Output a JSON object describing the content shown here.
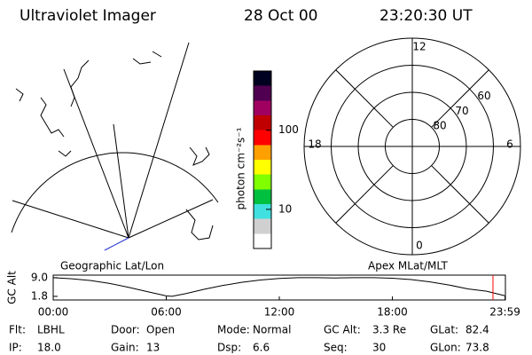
{
  "header": {
    "instrument": "Ultraviolet Imager",
    "date": "28 Oct 00",
    "time": "23:20:30 UT"
  },
  "colorbar": {
    "label": "photon cm⁻²s⁻¹",
    "log": true,
    "lim": [
      3.2,
      560
    ],
    "ticks": [
      10,
      100
    ],
    "colors": [
      "#ffffff",
      "#d0d0d0",
      "#40e0e0",
      "#00c040",
      "#80ff00",
      "#ffff00",
      "#ffa000",
      "#ff0000",
      "#c00000",
      "#a00060",
      "#500050",
      "#000020"
    ]
  },
  "polar": {
    "lat_lim": [
      50,
      90
    ],
    "lat_rings": [
      80,
      70,
      60
    ],
    "hours": [
      12,
      6,
      0,
      18
    ]
  },
  "altitude": {
    "left_label": "Geographic Lat/Lon",
    "right_label": "Apex MLat/MLT",
    "ylabel": "GC Alt",
    "xlim": [
      0,
      24
    ],
    "ylim": [
      0.4,
      10.0
    ],
    "yticks": [
      {
        "value": 9.0,
        "label": "9.0"
      },
      {
        "value": 1.8,
        "label": "1.8"
      }
    ],
    "xticks": [
      {
        "value": 0,
        "label": "00:00"
      },
      {
        "value": 6,
        "label": "06:00"
      },
      {
        "value": 12,
        "label": "12:00"
      },
      {
        "value": 18,
        "label": "18:00"
      },
      {
        "value": 23.98,
        "label": "23:59"
      }
    ],
    "x": [
      0,
      1,
      2,
      3,
      4,
      5,
      6,
      6.3,
      7,
      8,
      9,
      10,
      11,
      12,
      13,
      14,
      15,
      16,
      17,
      18,
      19,
      20,
      21,
      22,
      23,
      24
    ],
    "values": [
      9.0,
      8.6,
      7.9,
      6.8,
      5.3,
      3.6,
      2.0,
      1.8,
      2.8,
      4.5,
      6.0,
      7.2,
      8.1,
      8.7,
      9.0,
      9.0,
      8.9,
      9.0,
      9.0,
      8.8,
      8.3,
      7.4,
      6.2,
      4.7,
      3.8,
      2.0
    ],
    "line_color": "#000000",
    "marker_x": 23.34,
    "marker_color": "#ff0000"
  },
  "status": {
    "rows": [
      [
        [
          "Flt:",
          "LBHL"
        ],
        [
          "Door:",
          "Open"
        ],
        [
          "Mode:",
          "Normal"
        ],
        [
          "GC Alt:",
          "3.3 Re"
        ],
        [
          "GLat:",
          "82.4"
        ]
      ],
      [
        [
          "IP:",
          "18.0"
        ],
        [
          "Gain:",
          "13"
        ],
        [
          "Dsp:",
          "6.6"
        ],
        [
          "Seq:",
          "30"
        ],
        [
          "GLon:",
          "73.8"
        ]
      ]
    ]
  }
}
